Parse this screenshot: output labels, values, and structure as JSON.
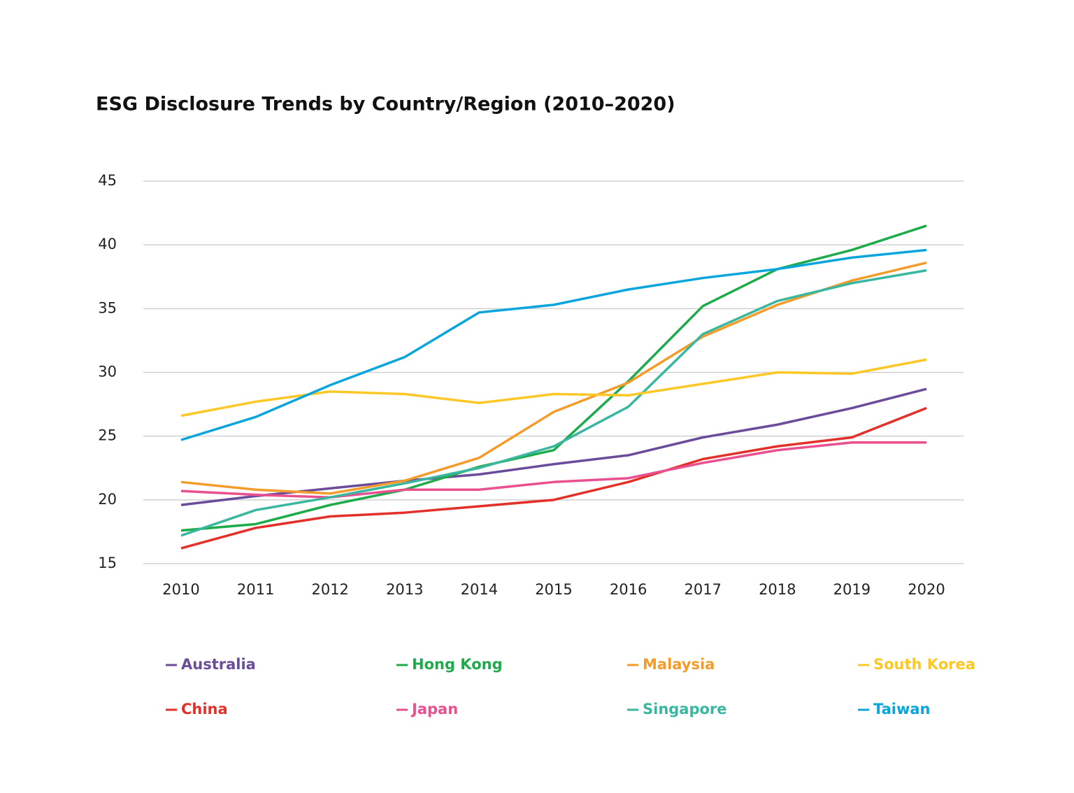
{
  "chart_data": {
    "type": "line",
    "title": "ESG Disclosure Trends by Country/Region (2010–2020)",
    "categories": [
      "2010",
      "2011",
      "2012",
      "2013",
      "2014",
      "2015",
      "2016",
      "2017",
      "2018",
      "2019",
      "2020"
    ],
    "ylim": [
      15,
      45
    ],
    "yticks": [
      15,
      20,
      25,
      30,
      35,
      40,
      45
    ],
    "grid": true,
    "series": [
      {
        "name": "Australia",
        "color": "#6b4c9a",
        "values": [
          19.6,
          20.3,
          20.9,
          21.5,
          22.0,
          22.8,
          23.5,
          24.9,
          25.9,
          27.2,
          28.7
        ]
      },
      {
        "name": "China",
        "color": "#e2312a",
        "values": [
          16.2,
          17.8,
          18.7,
          19.0,
          19.5,
          20.0,
          21.4,
          23.2,
          24.2,
          24.9,
          27.2
        ]
      },
      {
        "name": "Hong Kong",
        "color": "#1faa4b",
        "values": [
          17.6,
          18.1,
          19.6,
          20.8,
          22.6,
          23.9,
          29.3,
          35.2,
          38.1,
          39.6,
          41.5
        ]
      },
      {
        "name": "Japan",
        "color": "#e8508f",
        "values": [
          20.7,
          20.4,
          20.2,
          20.8,
          20.8,
          21.4,
          21.7,
          22.9,
          23.9,
          24.5,
          24.5
        ]
      },
      {
        "name": "Malaysia",
        "color": "#f39c2b",
        "values": [
          21.4,
          20.8,
          20.5,
          21.5,
          23.3,
          26.9,
          29.2,
          32.8,
          35.3,
          37.2,
          38.6
        ]
      },
      {
        "name": "Singapore",
        "color": "#3bb7a0",
        "values": [
          17.2,
          19.2,
          20.2,
          21.3,
          22.5,
          24.2,
          27.3,
          33.0,
          35.6,
          37.0,
          38.0
        ]
      },
      {
        "name": "South Korea",
        "color": "#fcc827",
        "values": [
          26.6,
          27.7,
          28.5,
          28.3,
          27.6,
          28.3,
          28.2,
          29.1,
          30.0,
          29.9,
          31.0
        ]
      },
      {
        "name": "Taiwan",
        "color": "#0aa5dd",
        "values": [
          24.7,
          26.5,
          29.0,
          31.2,
          34.7,
          35.3,
          36.5,
          37.4,
          38.1,
          39.0,
          39.6
        ]
      }
    ]
  }
}
